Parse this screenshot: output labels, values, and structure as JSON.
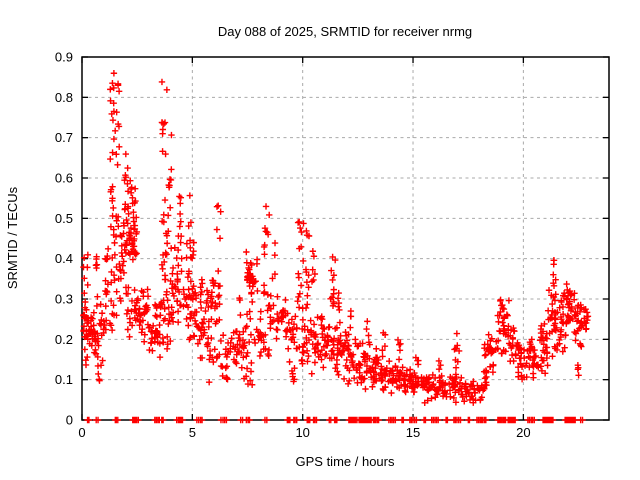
{
  "page": {
    "background": "#ffffff"
  },
  "chart_data": {
    "type": "scatter",
    "title": "Day 088 of 2025, SRMTID for receiver nrmg",
    "xlabel": "GPS time / hours",
    "ylabel": "SRMTID / TECUs",
    "xlim": [
      0,
      23.88
    ],
    "ylim": [
      0,
      0.9
    ],
    "xticks": {
      "values": [
        0,
        5,
        10,
        15,
        20
      ],
      "labels": [
        "0",
        "5",
        "10",
        "15",
        "20"
      ]
    },
    "yticks": {
      "values": [
        0,
        0.1,
        0.2,
        0.3,
        0.4,
        0.5,
        0.6,
        0.7,
        0.8,
        0.9
      ],
      "labels": [
        "0",
        "0.1",
        "0.2",
        "0.3",
        "0.4",
        "0.5",
        "0.6",
        "0.7",
        "0.8",
        "0.9"
      ]
    },
    "grid": {
      "show": true,
      "style": "dashed",
      "color": "#a9a9a9"
    },
    "axis_color": "#000000",
    "text_color": "#000000",
    "legend": "none",
    "series": [
      {
        "name": "SRMTID",
        "marker": "plus",
        "color": "#ff0000",
        "clusters": [
          [
            0.05,
            0.3,
            0.19,
            0.3,
            20,
            "mid"
          ],
          [
            0.05,
            0.3,
            0.28,
            0.41,
            8,
            "uniform"
          ],
          [
            0.1,
            0.25,
            0.13,
            0.19,
            4,
            "uniform"
          ],
          [
            0.3,
            0.55,
            0.17,
            0.28,
            18,
            "mid"
          ],
          [
            0.55,
            0.8,
            0.15,
            0.25,
            14,
            "mid"
          ],
          [
            0.6,
            0.7,
            0.28,
            0.41,
            7,
            "uniform"
          ],
          [
            0.6,
            0.95,
            0.08,
            0.15,
            6,
            "uniform"
          ],
          [
            0.8,
            1.1,
            0.18,
            0.33,
            16,
            "mid"
          ],
          [
            1.0,
            1.2,
            0.3,
            0.45,
            10,
            "uniform"
          ],
          [
            1.25,
            1.45,
            0.45,
            0.86,
            22,
            "uniform"
          ],
          [
            1.25,
            1.5,
            0.22,
            0.45,
            14,
            "uniform"
          ],
          [
            1.5,
            1.7,
            0.5,
            0.84,
            12,
            "uniform"
          ],
          [
            1.5,
            1.75,
            0.25,
            0.5,
            12,
            "uniform"
          ],
          [
            1.75,
            2.0,
            0.28,
            0.5,
            16,
            "mid"
          ],
          [
            1.9,
            2.05,
            0.45,
            0.67,
            9,
            "uniform"
          ],
          [
            2.05,
            2.45,
            0.45,
            0.63,
            20,
            "mid"
          ],
          [
            2.0,
            2.5,
            0.36,
            0.52,
            30,
            "mid"
          ],
          [
            2.0,
            2.55,
            0.2,
            0.36,
            24,
            "mid"
          ],
          [
            2.55,
            3.0,
            0.18,
            0.34,
            28,
            "mid"
          ],
          [
            3.0,
            3.45,
            0.14,
            0.26,
            24,
            "mid"
          ],
          [
            3.3,
            3.4,
            0.24,
            0.31,
            5,
            "uniform"
          ],
          [
            3.5,
            3.62,
            0.15,
            0.3,
            10,
            "uniform"
          ],
          [
            3.62,
            3.85,
            0.3,
            0.85,
            28,
            "uniform"
          ],
          [
            3.62,
            3.9,
            0.16,
            0.3,
            12,
            "uniform"
          ],
          [
            3.85,
            4.1,
            0.28,
            0.71,
            15,
            "uniform"
          ],
          [
            3.9,
            4.15,
            0.15,
            0.28,
            10,
            "uniform"
          ],
          [
            4.1,
            4.35,
            0.22,
            0.45,
            15,
            "mid"
          ],
          [
            4.35,
            4.55,
            0.42,
            0.66,
            10,
            "uniform"
          ],
          [
            4.3,
            4.6,
            0.24,
            0.42,
            10,
            "uniform"
          ],
          [
            4.6,
            4.85,
            0.2,
            0.4,
            14,
            "mid"
          ],
          [
            4.7,
            4.95,
            0.4,
            0.56,
            8,
            "uniform"
          ],
          [
            4.85,
            5.2,
            0.17,
            0.35,
            22,
            "mid"
          ],
          [
            4.95,
            5.1,
            0.33,
            0.46,
            6,
            "uniform"
          ],
          [
            5.2,
            5.6,
            0.14,
            0.3,
            18,
            "mid"
          ],
          [
            5.35,
            5.55,
            0.28,
            0.35,
            6,
            "uniform"
          ],
          [
            5.6,
            6.05,
            0.26,
            0.36,
            18,
            "mid"
          ],
          [
            5.6,
            6.1,
            0.09,
            0.26,
            16,
            "uniform"
          ],
          [
            6.1,
            6.3,
            0.1,
            0.58,
            18,
            "uniform"
          ],
          [
            6.3,
            6.6,
            0.1,
            0.3,
            14,
            "low"
          ],
          [
            6.6,
            7.05,
            0.12,
            0.26,
            18,
            "mid"
          ],
          [
            7.05,
            7.4,
            0.12,
            0.24,
            14,
            "mid"
          ],
          [
            7.1,
            7.2,
            0.25,
            0.31,
            4,
            "uniform"
          ],
          [
            7.25,
            7.75,
            0.07,
            0.16,
            10,
            "uniform"
          ],
          [
            7.4,
            7.95,
            0.3,
            0.43,
            34,
            "mid"
          ],
          [
            7.4,
            7.95,
            0.16,
            0.3,
            12,
            "uniform"
          ],
          [
            7.95,
            8.2,
            0.15,
            0.3,
            12,
            "mid"
          ],
          [
            8.2,
            8.5,
            0.27,
            0.53,
            16,
            "uniform"
          ],
          [
            8.2,
            8.5,
            0.15,
            0.27,
            8,
            "uniform"
          ],
          [
            8.5,
            8.8,
            0.22,
            0.45,
            12,
            "uniform"
          ],
          [
            8.8,
            9.3,
            0.18,
            0.33,
            24,
            "mid"
          ],
          [
            9.3,
            9.75,
            0.13,
            0.28,
            20,
            "mid"
          ],
          [
            9.4,
            9.65,
            0.09,
            0.14,
            6,
            "uniform"
          ],
          [
            9.75,
            10.05,
            0.28,
            0.53,
            14,
            "uniform"
          ],
          [
            9.75,
            10.1,
            0.12,
            0.28,
            12,
            "uniform"
          ],
          [
            10.1,
            10.35,
            0.3,
            0.47,
            10,
            "uniform"
          ],
          [
            10.05,
            10.4,
            0.12,
            0.3,
            14,
            "mid"
          ],
          [
            10.4,
            10.6,
            0.3,
            0.42,
            6,
            "uniform"
          ],
          [
            10.35,
            10.85,
            0.1,
            0.27,
            24,
            "mid"
          ],
          [
            10.85,
            11.2,
            0.12,
            0.28,
            22,
            "mid"
          ],
          [
            11.2,
            11.5,
            0.28,
            0.42,
            12,
            "uniform"
          ],
          [
            11.2,
            11.55,
            0.12,
            0.28,
            14,
            "mid"
          ],
          [
            11.55,
            12.0,
            0.09,
            0.26,
            28,
            "mid"
          ],
          [
            11.6,
            11.75,
            0.26,
            0.33,
            5,
            "uniform"
          ],
          [
            12.0,
            12.5,
            0.08,
            0.23,
            28,
            "mid"
          ],
          [
            12.15,
            12.3,
            0.22,
            0.28,
            4,
            "uniform"
          ],
          [
            12.5,
            13.0,
            0.07,
            0.2,
            28,
            "mid"
          ],
          [
            12.85,
            13.05,
            0.18,
            0.25,
            5,
            "uniform"
          ],
          [
            13.0,
            13.5,
            0.07,
            0.18,
            28,
            "mid"
          ],
          [
            13.6,
            13.75,
            0.15,
            0.22,
            5,
            "uniform"
          ],
          [
            13.5,
            14.0,
            0.06,
            0.16,
            26,
            "mid"
          ],
          [
            14.0,
            14.5,
            0.06,
            0.15,
            26,
            "mid"
          ],
          [
            14.3,
            14.45,
            0.14,
            0.21,
            5,
            "uniform"
          ],
          [
            14.5,
            15.0,
            0.05,
            0.14,
            26,
            "mid"
          ],
          [
            15.0,
            15.5,
            0.05,
            0.13,
            24,
            "mid"
          ],
          [
            15.1,
            15.25,
            0.13,
            0.17,
            4,
            "uniform"
          ],
          [
            15.5,
            16.0,
            0.04,
            0.12,
            24,
            "mid"
          ],
          [
            16.0,
            16.5,
            0.04,
            0.12,
            24,
            "mid"
          ],
          [
            16.15,
            16.3,
            0.12,
            0.16,
            3,
            "uniform"
          ],
          [
            16.5,
            17.0,
            0.04,
            0.12,
            22,
            "mid"
          ],
          [
            16.85,
            17.1,
            0.1,
            0.22,
            9,
            "uniform"
          ],
          [
            17.0,
            17.55,
            0.04,
            0.11,
            22,
            "mid"
          ],
          [
            17.55,
            18.05,
            0.04,
            0.1,
            20,
            "mid"
          ],
          [
            18.05,
            18.4,
            0.05,
            0.14,
            16,
            "mid"
          ],
          [
            18.2,
            18.4,
            0.13,
            0.19,
            6,
            "uniform"
          ],
          [
            18.4,
            18.8,
            0.11,
            0.24,
            22,
            "mid"
          ],
          [
            18.8,
            19.35,
            0.15,
            0.32,
            34,
            "mid"
          ],
          [
            19.35,
            19.7,
            0.12,
            0.25,
            18,
            "mid"
          ],
          [
            19.7,
            20.25,
            0.08,
            0.2,
            26,
            "mid"
          ],
          [
            20.25,
            20.7,
            0.08,
            0.21,
            24,
            "mid"
          ],
          [
            20.7,
            21.1,
            0.1,
            0.27,
            28,
            "mid"
          ],
          [
            21.1,
            21.5,
            0.14,
            0.35,
            28,
            "mid"
          ],
          [
            21.35,
            21.5,
            0.33,
            0.41,
            7,
            "uniform"
          ],
          [
            21.5,
            21.95,
            0.15,
            0.34,
            28,
            "mid"
          ],
          [
            21.95,
            22.35,
            0.18,
            0.37,
            28,
            "mid"
          ],
          [
            22.35,
            22.7,
            0.17,
            0.31,
            24,
            "mid"
          ],
          [
            22.4,
            22.55,
            0.11,
            0.16,
            4,
            "uniform"
          ],
          [
            22.7,
            22.95,
            0.2,
            0.3,
            12,
            "mid"
          ]
        ],
        "zero_runs": [
          [
            0.25,
            0.32,
            2
          ],
          [
            0.65,
            0.72,
            2
          ],
          [
            1.5,
            1.62,
            3
          ],
          [
            2.3,
            2.55,
            5
          ],
          [
            3.3,
            3.5,
            4
          ],
          [
            3.62,
            3.68,
            2
          ],
          [
            4.3,
            4.55,
            5
          ],
          [
            5.2,
            5.45,
            4
          ],
          [
            6.3,
            6.55,
            4
          ],
          [
            7.2,
            7.28,
            2
          ],
          [
            7.45,
            7.6,
            3
          ],
          [
            8.3,
            8.38,
            2
          ],
          [
            9.3,
            9.42,
            3
          ],
          [
            9.6,
            9.72,
            3
          ],
          [
            10.2,
            10.32,
            3
          ],
          [
            10.5,
            10.62,
            3
          ],
          [
            11.2,
            11.28,
            2
          ],
          [
            11.45,
            11.55,
            3
          ],
          [
            12.1,
            12.45,
            8
          ],
          [
            12.55,
            13.1,
            13
          ],
          [
            13.2,
            13.45,
            5
          ],
          [
            13.9,
            14.2,
            5
          ],
          [
            14.5,
            14.56,
            2
          ],
          [
            14.85,
            15.15,
            5
          ],
          [
            15.5,
            15.56,
            2
          ],
          [
            15.85,
            16.15,
            5
          ],
          [
            16.5,
            16.56,
            2
          ],
          [
            16.85,
            17.15,
            5
          ],
          [
            17.5,
            17.56,
            2
          ],
          [
            17.9,
            18.3,
            7
          ],
          [
            18.85,
            19.2,
            7
          ],
          [
            19.3,
            19.62,
            8
          ],
          [
            20.2,
            20.5,
            5
          ],
          [
            20.9,
            21.35,
            11
          ],
          [
            21.9,
            22.35,
            11
          ],
          [
            22.6,
            22.68,
            2
          ]
        ]
      }
    ]
  }
}
